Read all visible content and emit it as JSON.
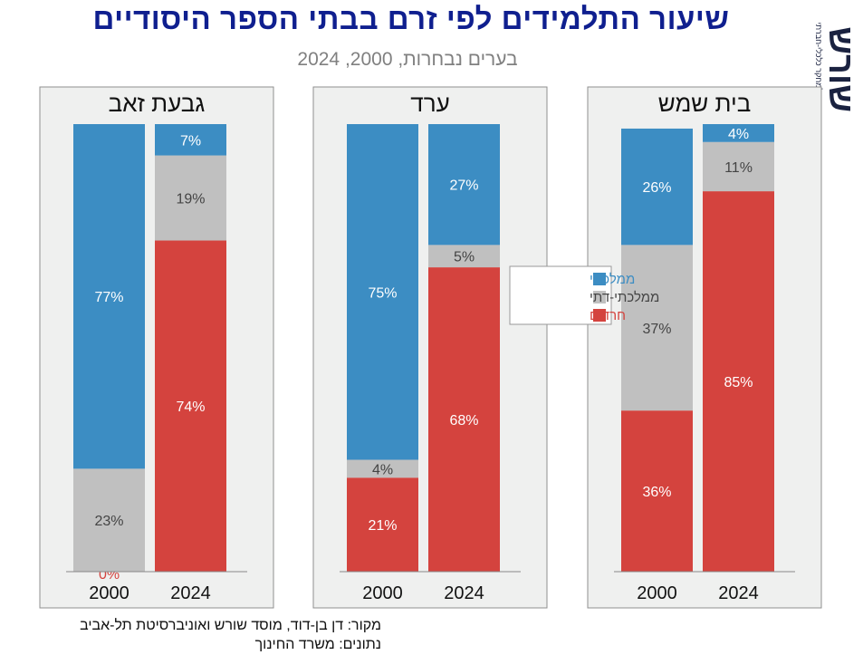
{
  "title": "שיעור התלמידים לפי זרם בבתי הספר היסודיים",
  "subtitle": "בערים נבחרות, 2000, 2024",
  "logo": {
    "word": "שורש",
    "tagline": "מוסד למחקר כלכלי-חברתי"
  },
  "colors": {
    "mamlachti": "#3c8dc3",
    "mamlachti_dati": "#c0c0c0",
    "haredi": "#d4433e",
    "panel_bg": "#eff0ef",
    "zero_label": "#d4433e"
  },
  "chart_data": {
    "type": "bar",
    "stacked": true,
    "series_order": [
      "חרדים",
      "ממלכתי-דתי",
      "ממלכתי"
    ],
    "legend": [
      {
        "name": "ממלכתי",
        "color": "#3c8dc3"
      },
      {
        "name": "ממלכתי-דתי",
        "color": "#c0c0c0"
      },
      {
        "name": "חרדים",
        "color": "#d4433e"
      }
    ],
    "legend_position": "center",
    "ylim": [
      0,
      100
    ],
    "panels": [
      {
        "city": "גבעת זאב",
        "bars": [
          {
            "year": "2000",
            "segments": [
              0,
              23,
              77
            ],
            "labels": [
              "0%",
              "23%",
              "77%"
            ]
          },
          {
            "year": "2024",
            "segments": [
              74,
              19,
              7
            ],
            "labels": [
              "74%",
              "19%",
              "7%"
            ]
          }
        ]
      },
      {
        "city": "ערד",
        "bars": [
          {
            "year": "2000",
            "segments": [
              21,
              4,
              75
            ],
            "labels": [
              "21%",
              "4%",
              "75%"
            ]
          },
          {
            "year": "2024",
            "segments": [
              68,
              5,
              27
            ],
            "labels": [
              "68%",
              "5%",
              "27%"
            ]
          }
        ]
      },
      {
        "city": "בית שמש",
        "bars": [
          {
            "year": "2000",
            "segments": [
              36,
              37,
              26
            ],
            "labels": [
              "36%",
              "37%",
              "26%"
            ]
          },
          {
            "year": "2024",
            "segments": [
              85,
              11,
              4
            ],
            "labels": [
              "85%",
              "11%",
              "4%"
            ]
          }
        ]
      }
    ]
  },
  "footer": {
    "source": "מקור:  דן בן-דוד, מוסד שורש ואוניברסיטת תל-אביב",
    "data": "נתונים: משרד החינוך"
  }
}
